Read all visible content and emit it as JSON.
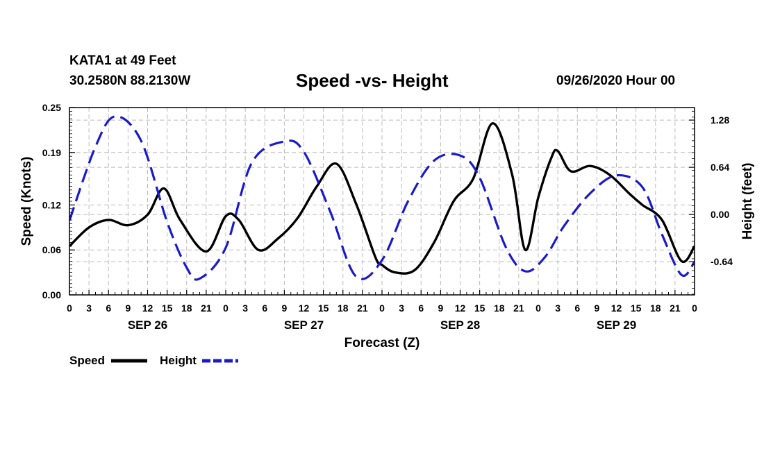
{
  "header": {
    "station": "KATA1 at 49 Feet",
    "coords": "30.2580N 88.2130W",
    "stamp": "09/26/2020 Hour 00"
  },
  "colors": {
    "speed": "#000000",
    "height": "#1a1acc",
    "grid": "#bbbbbb"
  },
  "chart_data": {
    "type": "line",
    "title": "Speed -vs- Height",
    "xlabel": "Forecast (Z)",
    "ylabel": "Speed (Knots)",
    "y2label": "Height (feet)",
    "x_range": [
      0,
      96
    ],
    "ylim": [
      0.0,
      0.25
    ],
    "y2lim": [
      -1.09,
      1.45
    ],
    "yticks": [
      "0.25",
      "0.19",
      "0.12",
      "0.06",
      "0.00"
    ],
    "yticks_values": [
      0.25,
      0.19,
      0.12,
      0.06,
      0.0
    ],
    "y2ticks": [
      "1.28",
      "0.64",
      "0.00",
      "-0.64"
    ],
    "y2ticks_values": [
      1.28,
      0.64,
      0.0,
      -0.64
    ],
    "xtick_labels": [
      "0",
      "3",
      "6",
      "9",
      "12",
      "15",
      "18",
      "21",
      "0",
      "3",
      "6",
      "9",
      "12",
      "15",
      "18",
      "21",
      "0",
      "3",
      "6",
      "9",
      "12",
      "15",
      "18",
      "21",
      "0",
      "3",
      "6",
      "9",
      "12",
      "15",
      "18",
      "21",
      "0"
    ],
    "date_labels": [
      {
        "label": "SEP 26",
        "hour": 12
      },
      {
        "label": "SEP 27",
        "hour": 36
      },
      {
        "label": "SEP 28",
        "hour": 60
      },
      {
        "label": "SEP 29",
        "hour": 84
      }
    ],
    "grid": true,
    "series": [
      {
        "name": "Speed",
        "axis": "left",
        "style": "solid",
        "x": [
          0,
          3,
          6,
          9,
          12,
          14.5,
          17,
          21,
          24,
          26,
          29,
          32,
          35,
          38,
          41,
          44,
          47,
          48,
          50,
          53,
          56,
          59,
          62,
          65,
          68,
          70,
          72,
          74,
          75,
          77,
          80,
          83,
          86,
          88,
          91,
          94,
          96
        ],
        "y": [
          0.065,
          0.09,
          0.1,
          0.093,
          0.107,
          0.142,
          0.1,
          0.058,
          0.105,
          0.1,
          0.06,
          0.075,
          0.102,
          0.145,
          0.175,
          0.122,
          0.05,
          0.04,
          0.03,
          0.033,
          0.07,
          0.125,
          0.155,
          0.229,
          0.16,
          0.06,
          0.13,
          0.183,
          0.192,
          0.165,
          0.172,
          0.16,
          0.135,
          0.12,
          0.1,
          0.045,
          0.065
        ]
      },
      {
        "name": "Height",
        "axis": "right",
        "style": "dashed",
        "x": [
          0,
          4,
          7,
          11,
          15,
          18,
          20,
          24,
          28,
          33,
          36,
          40,
          44,
          48,
          52,
          56,
          60,
          63,
          67,
          70,
          73,
          76,
          80,
          84,
          88,
          91,
          94,
          96
        ],
        "y": [
          -0.08,
          0.92,
          1.33,
          1.0,
          -0.1,
          -0.72,
          -0.87,
          -0.45,
          0.7,
          0.99,
          0.85,
          0.05,
          -0.84,
          -0.62,
          0.18,
          0.73,
          0.8,
          0.5,
          -0.44,
          -0.77,
          -0.58,
          -0.15,
          0.29,
          0.53,
          0.37,
          -0.27,
          -0.82,
          -0.64
        ]
      }
    ],
    "legend": [
      {
        "label": "Speed",
        "style": "solid"
      },
      {
        "label": "Height",
        "style": "dashed"
      }
    ]
  }
}
